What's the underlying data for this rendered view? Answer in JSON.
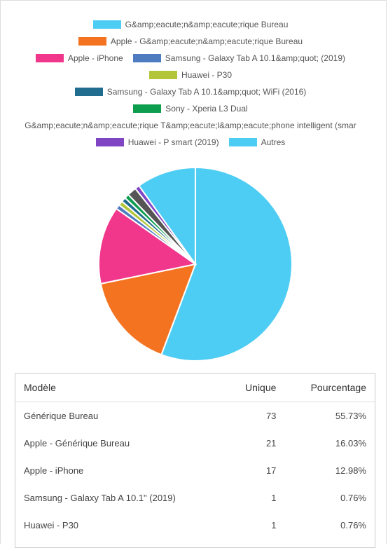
{
  "legend": [
    [
      {
        "label": "G&amp;eacute;n&amp;eacute;rique Bureau",
        "color": "#4ecdf4"
      }
    ],
    [
      {
        "label": "Apple - G&amp;eacute;n&amp;eacute;rique Bureau",
        "color": "#f47321"
      }
    ],
    [
      {
        "label": "Apple - iPhone",
        "color": "#f1378b"
      },
      {
        "label": "Samsung - Galaxy Tab A 10.1&amp;quot; (2019)",
        "color": "#4f7cc0"
      }
    ],
    [
      {
        "label": "Huawei - P30",
        "color": "#b3c63a"
      }
    ],
    [
      {
        "label": "Samsung - Galaxy Tab A 10.1&amp;quot; WiFi (2016)",
        "color": "#216d8f"
      }
    ],
    [
      {
        "label": "Sony - Xperia L3 Dual",
        "color": "#0d9e4d"
      }
    ],
    [
      {
        "label": "G&amp;eacute;n&amp;eacute;rique T&amp;eacute;l&amp;eacute;phone intelligent (smar",
        "color": ""
      }
    ],
    [
      {
        "label": "Huawei - P smart (2019)",
        "color": "#7f45c3"
      },
      {
        "label": "Autres",
        "color": "#4ecdf4"
      }
    ]
  ],
  "chart_data": {
    "type": "pie",
    "slices": [
      {
        "label": "Générique Bureau",
        "value": 55.73,
        "color": "#4ecdf4"
      },
      {
        "label": "Apple - Générique Bureau",
        "value": 16.03,
        "color": "#f47321"
      },
      {
        "label": "Apple - iPhone",
        "value": 12.98,
        "color": "#f1378b"
      },
      {
        "label": "Samsung - Galaxy Tab A 10.1\" (2019)",
        "value": 0.76,
        "color": "#4f7cc0"
      },
      {
        "label": "Huawei - P30",
        "value": 0.76,
        "color": "#b3c63a"
      },
      {
        "label": "Samsung - Galaxy Tab A 10.1\" WiFi (2016)",
        "value": 0.76,
        "color": "#216d8f"
      },
      {
        "label": "Sony - Xperia L3 Dual",
        "value": 0.76,
        "color": "#0d9e4d"
      },
      {
        "label": "Générique Téléphone intelligent",
        "value": 1.53,
        "color": "#555555"
      },
      {
        "label": "Huawei - P smart (2019)",
        "value": 0.76,
        "color": "#7f45c3"
      },
      {
        "label": "Autres",
        "value": 9.93,
        "color": "#4ecdf4"
      }
    ]
  },
  "table": {
    "headers": {
      "model": "Modèle",
      "unique": "Unique",
      "percent": "Pourcentage"
    },
    "rows": [
      {
        "model": "Générique Bureau",
        "unique": "73",
        "percent": "55.73%"
      },
      {
        "model": "Apple - Générique Bureau",
        "unique": "21",
        "percent": "16.03%"
      },
      {
        "model": "Apple - iPhone",
        "unique": "17",
        "percent": "12.98%"
      },
      {
        "model": "Samsung - Galaxy Tab A 10.1\" (2019)",
        "unique": "1",
        "percent": "0.76%"
      },
      {
        "model": "Huawei - P30",
        "unique": "1",
        "percent": "0.76%"
      }
    ]
  }
}
